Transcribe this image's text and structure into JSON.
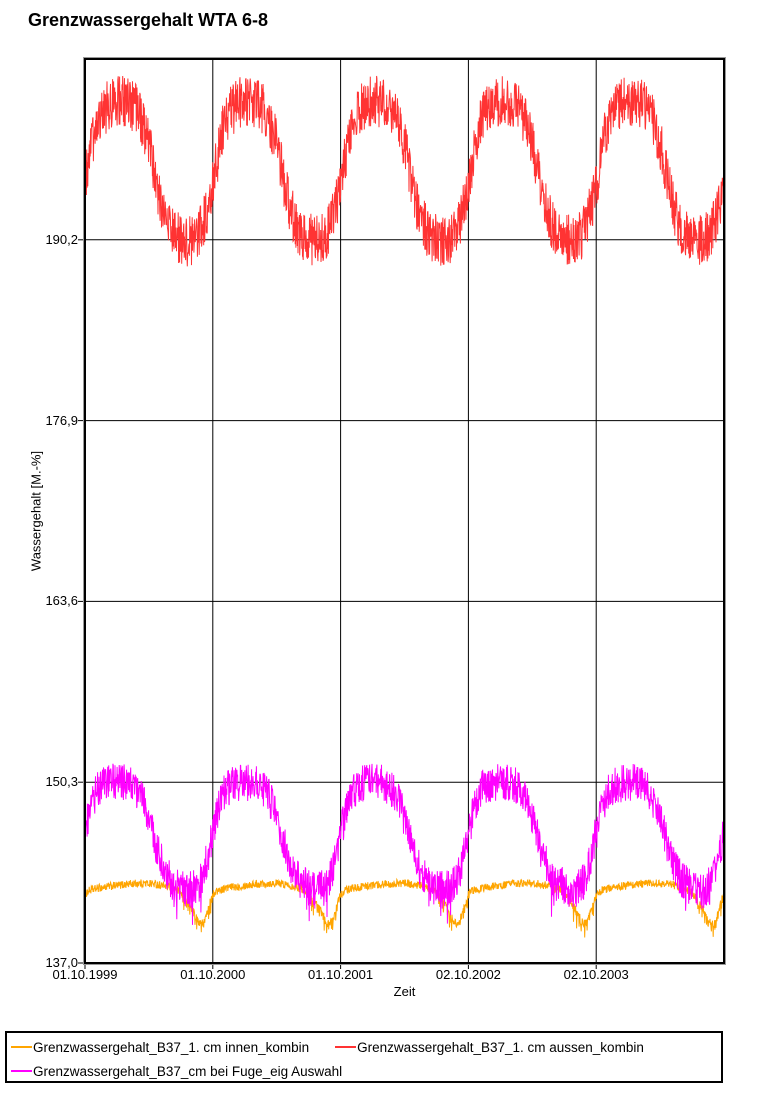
{
  "chart_data": {
    "type": "line",
    "title": "Grenzwassergehalt WTA 6-8",
    "xlabel": "Zeit",
    "ylabel": "Wassergehalt [M.-%]",
    "grid": true,
    "legend_position": "bottom",
    "x_range": {
      "start": "01.10.1999",
      "end": "01.10.2004",
      "years": 5
    },
    "y_range": [
      137.0,
      203.5
    ],
    "x_ticks": [
      {
        "label": "01.10.1999",
        "pos": 0.0
      },
      {
        "label": "01.10.2000",
        "pos": 0.2
      },
      {
        "label": "01.10.2001",
        "pos": 0.4
      },
      {
        "label": "02.10.2002",
        "pos": 0.6
      },
      {
        "label": "02.10.2003",
        "pos": 0.8
      }
    ],
    "y_ticks": [
      {
        "label": "137,0",
        "value": 137.0
      },
      {
        "label": "150,3",
        "value": 150.3
      },
      {
        "label": "163,6",
        "value": 163.6
      },
      {
        "label": "176,9",
        "value": 176.9
      },
      {
        "label": "190,2",
        "value": 190.2
      }
    ],
    "samples_per_year": 366,
    "series": [
      {
        "id": "innen",
        "name": "Grenzwassergehalt_B37_1. cm innen_kombin",
        "color": "#FFA500",
        "approx_range": [
          139.2,
          143.2
        ],
        "monthly_profile_oct_to_sep": [
          142.0,
          142.45,
          142.6,
          142.7,
          142.8,
          142.85,
          142.85,
          142.75,
          142.55,
          142.15,
          141.0,
          139.9
        ],
        "noise_amplitude": 0.3,
        "extra_down_noise": {
          "below": 142.0,
          "amp": 1.0,
          "prob": 0.3
        }
      },
      {
        "id": "aussen",
        "name": "Grenzwassergehalt_B37_1. cm aussen_kombin",
        "color": "#FF3333",
        "approx_range": [
          188.5,
          202.3
        ],
        "monthly_profile_oct_to_sep": [
          194.3,
          198.6,
          199.9,
          200.4,
          200.2,
          199.5,
          197.2,
          193.4,
          191.0,
          190.3,
          190.2,
          191.2
        ],
        "noise_amplitude": 1.9
      },
      {
        "id": "fuge",
        "name": "Grenzwassergehalt_B37_cm bei Fuge_eig Auswahl",
        "color": "#FF00FF",
        "approx_range": [
          139.0,
          151.5
        ],
        "monthly_profile_oct_to_sep": [
          146.6,
          149.4,
          150.1,
          150.3,
          150.2,
          149.6,
          147.6,
          144.9,
          143.2,
          142.6,
          142.4,
          143.3
        ],
        "noise_amplitude": 1.4,
        "extra_down_noise": {
          "below": 143.5,
          "amp": 1.9,
          "prob": 0.12
        }
      }
    ]
  }
}
